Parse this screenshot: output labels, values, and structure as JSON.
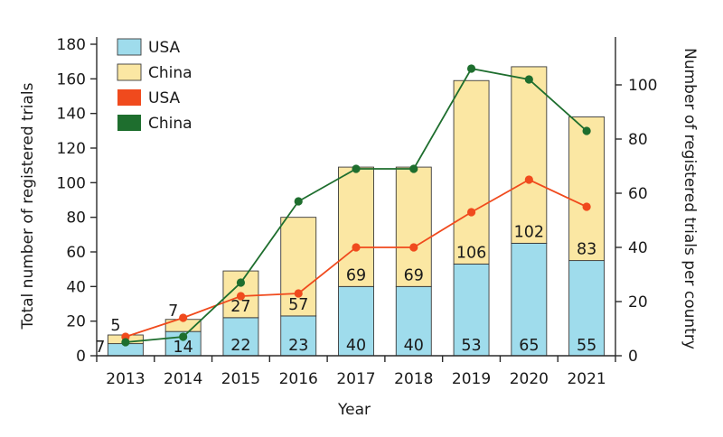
{
  "chart_data": {
    "type": "bar",
    "categories": [
      "2013",
      "2014",
      "2015",
      "2016",
      "2017",
      "2018",
      "2019",
      "2020",
      "2021"
    ],
    "xlabel": "Year",
    "ylabel": "Total number of registered trials",
    "y2label": "Number of registered trials per country",
    "ylim": [
      0,
      180
    ],
    "y2lim": [
      0,
      115
    ],
    "yticks": [
      0,
      20,
      40,
      60,
      80,
      100,
      120,
      140,
      160,
      180
    ],
    "y2ticks": [
      0,
      20,
      40,
      60,
      80,
      100
    ],
    "legend_position": "top-left",
    "bar_series": [
      {
        "name": "USA",
        "color": "#9fdcec",
        "values": [
          7,
          14,
          22,
          23,
          40,
          40,
          53,
          65,
          55
        ]
      },
      {
        "name": "China",
        "color": "#fbe7a3",
        "values": [
          5,
          7,
          27,
          57,
          69,
          69,
          106,
          102,
          83
        ]
      }
    ],
    "line_series": [
      {
        "name": "USA",
        "color": "#f04a1d",
        "axis": "right",
        "values": [
          7,
          14,
          22,
          23,
          40,
          40,
          53,
          65,
          55
        ]
      },
      {
        "name": "China",
        "color": "#1e6e2e",
        "axis": "right",
        "values": [
          5,
          7,
          27,
          57,
          69,
          69,
          106,
          102,
          83
        ]
      }
    ]
  }
}
